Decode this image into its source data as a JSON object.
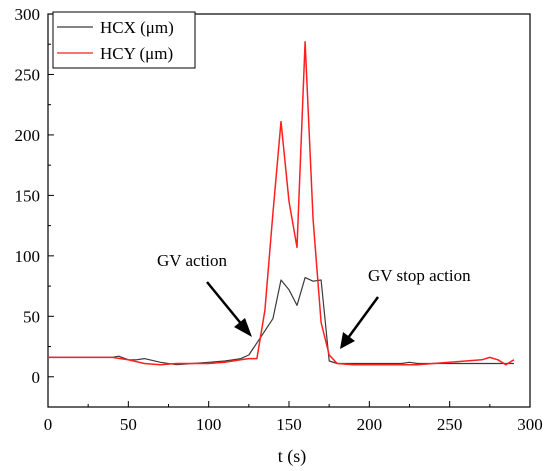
{
  "chart_data": {
    "type": "line",
    "xlabel": "t (s)",
    "ylabel": "",
    "xlim": [
      0,
      300
    ],
    "ylim": [
      -25,
      300
    ],
    "xticks": [
      0,
      50,
      100,
      150,
      200,
      250,
      300
    ],
    "yticks": [
      0,
      50,
      100,
      150,
      200,
      250,
      300
    ],
    "xtick_labels": [
      "0",
      "50",
      "100",
      "150",
      "200",
      "250",
      "300"
    ],
    "ytick_labels": [
      "0",
      "50",
      "100",
      "150",
      "200",
      "250",
      "300"
    ],
    "grid": false,
    "legend_position": "top-left",
    "series": [
      {
        "name": "HCX (μm)",
        "color": "#3a3a3a",
        "x": [
          0,
          20,
          40,
          44,
          50,
          55,
          60,
          70,
          80,
          90,
          100,
          110,
          115,
          120,
          125,
          130,
          135,
          140,
          145,
          150,
          155,
          160,
          165,
          170,
          175,
          180,
          190,
          200,
          210,
          220,
          225,
          230,
          240,
          250,
          260,
          270,
          280,
          290
        ],
        "y": [
          16,
          16,
          16,
          17,
          14,
          14,
          15,
          12,
          10,
          11,
          12,
          13,
          14,
          15,
          18,
          28,
          38,
          48,
          80,
          72,
          59,
          82,
          79,
          80,
          13,
          11,
          11,
          11,
          11,
          11,
          12,
          11,
          11,
          11,
          11,
          11,
          11,
          11
        ]
      },
      {
        "name": "HCY (μm)",
        "color": "#ff1f1f",
        "x": [
          0,
          20,
          40,
          50,
          60,
          70,
          80,
          90,
          100,
          110,
          115,
          120,
          125,
          130,
          135,
          140,
          145,
          150,
          155,
          160,
          165,
          170,
          175,
          180,
          190,
          200,
          210,
          220,
          230,
          240,
          250,
          260,
          270,
          275,
          280,
          285,
          290
        ],
        "y": [
          16,
          16,
          16,
          14,
          11,
          10,
          11,
          11,
          11,
          12,
          13,
          14,
          15,
          15,
          55,
          135,
          211,
          145,
          107,
          277,
          130,
          45,
          18,
          11,
          10,
          10,
          10,
          10,
          10,
          11,
          12,
          13,
          14,
          16,
          14,
          10,
          14
        ]
      }
    ],
    "annotations": [
      {
        "text": "GV action"
      },
      {
        "text": "GV stop action"
      }
    ]
  }
}
